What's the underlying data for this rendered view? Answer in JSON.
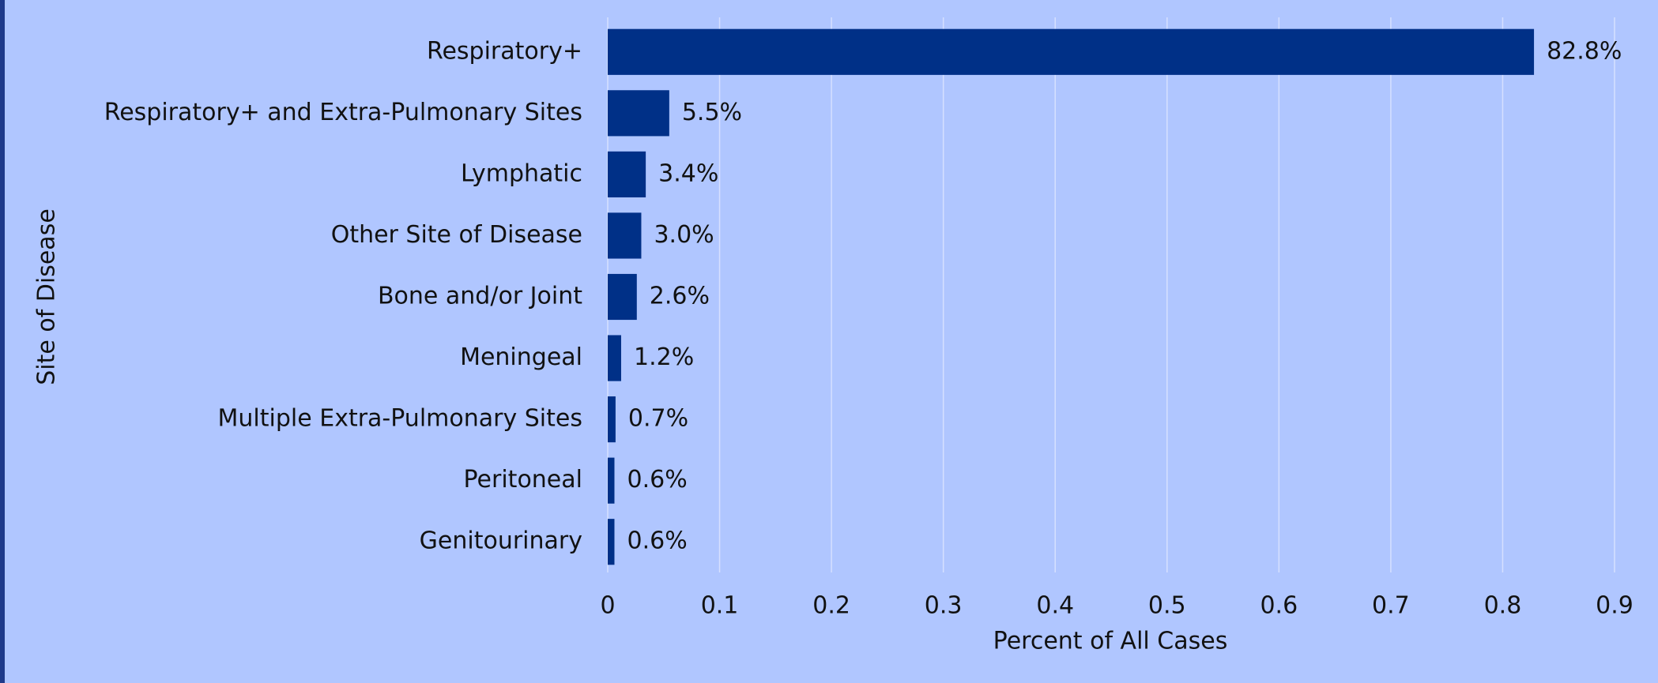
{
  "chart_data": {
    "type": "barh",
    "categories": [
      "Respiratory+",
      "Respiratory+ and Extra-Pulmonary Sites",
      "Lymphatic",
      "Other Site of Disease",
      "Bone and/or Joint",
      "Meningeal",
      "Multiple Extra-Pulmonary Sites",
      "Peritoneal",
      "Genitourinary"
    ],
    "values": [
      0.828,
      0.055,
      0.034,
      0.03,
      0.026,
      0.012,
      0.007,
      0.006,
      0.006
    ],
    "value_labels": [
      "82.8%",
      "5.5%",
      "3.4%",
      "3.0%",
      "2.6%",
      "1.2%",
      "0.7%",
      "0.6%",
      "0.6%"
    ],
    "color": "#003087",
    "xlabel": "Percent of All Cases",
    "ylabel": "Site of Disease",
    "xlim": [
      0,
      0.9
    ],
    "xticks": [
      0,
      0.1,
      0.2,
      0.3,
      0.4,
      0.5,
      0.6,
      0.7,
      0.8,
      0.9
    ],
    "grid": true
  }
}
